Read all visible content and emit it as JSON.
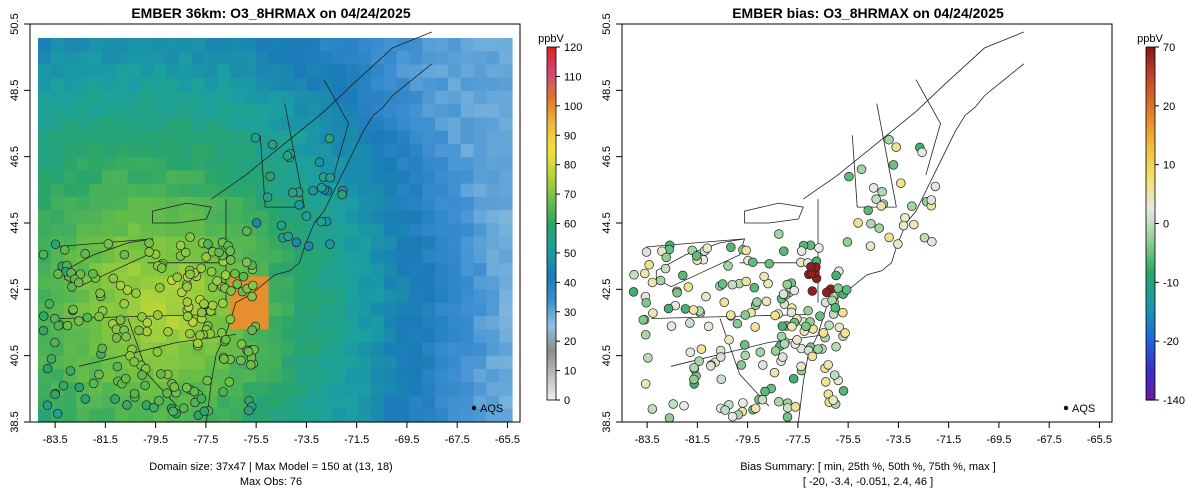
{
  "chart_data": [
    {
      "type": "map",
      "title": "EMBER 36km: O3_8HRMAX on 04/24/2025",
      "xticks": [
        "-83.5",
        "-81.5",
        "-79.5",
        "-77.5",
        "-75.5",
        "-73.5",
        "-71.5",
        "-69.5",
        "-67.5",
        "-65.5"
      ],
      "yticks": [
        "38.5",
        "40.5",
        "42.5",
        "44.5",
        "46.5",
        "48.5",
        "50.5"
      ],
      "xlim": [
        -84.5,
        -65.0
      ],
      "ylim": [
        38.5,
        50.5
      ],
      "colorbar": {
        "unit": "ppbV",
        "ticks": [
          "0",
          "10",
          "20",
          "30",
          "40",
          "50",
          "60",
          "70",
          "80",
          "90",
          "100",
          "110",
          "120"
        ],
        "range": [
          0,
          120
        ],
        "colors": [
          "#f2f2f2",
          "#bfbfbf",
          "#8c8c8c",
          "#8fc0e0",
          "#3d8fd1",
          "#1a7bb8",
          "#1ba0a0",
          "#2aa56a",
          "#6bbf45",
          "#b8d63a",
          "#f2e03a",
          "#f2b83a",
          "#e07a2a",
          "#d1487a",
          "#e02020"
        ]
      },
      "legend": "AQS",
      "footer": [
        "Domain size: 37x47 | Max Model = 150 at (13, 18)",
        "Max Obs: 76"
      ]
    },
    {
      "type": "map",
      "title": "EMBER bias: O3_8HRMAX on 04/24/2025",
      "xticks": [
        "-83.5",
        "-81.5",
        "-79.5",
        "-77.5",
        "-75.5",
        "-73.5",
        "-71.5",
        "-69.5",
        "-67.5",
        "-65.5"
      ],
      "yticks": [
        "38.5",
        "40.5",
        "42.5",
        "44.5",
        "46.5",
        "48.5",
        "50.5"
      ],
      "xlim": [
        -84.5,
        -65.0
      ],
      "ylim": [
        38.5,
        50.5
      ],
      "colorbar": {
        "unit": "ppbV",
        "ticks": [
          "-140",
          "-20",
          "-10",
          "0",
          "10",
          "20",
          "70"
        ],
        "colors": [
          "#6a1a9a",
          "#3a30c8",
          "#1f6ad8",
          "#1a9aa8",
          "#2aa56a",
          "#8fcf8f",
          "#e8e8e8",
          "#f2e06a",
          "#f2b83a",
          "#e0802a",
          "#c84a2a",
          "#8a1a1a"
        ]
      },
      "legend": "AQS",
      "footer": [
        "Bias Summary: [ min, 25th %, 50th %, 75th %, max ]",
        "[ -20,  -3.4,  -0.051,  2.4,  46 ]"
      ]
    }
  ]
}
